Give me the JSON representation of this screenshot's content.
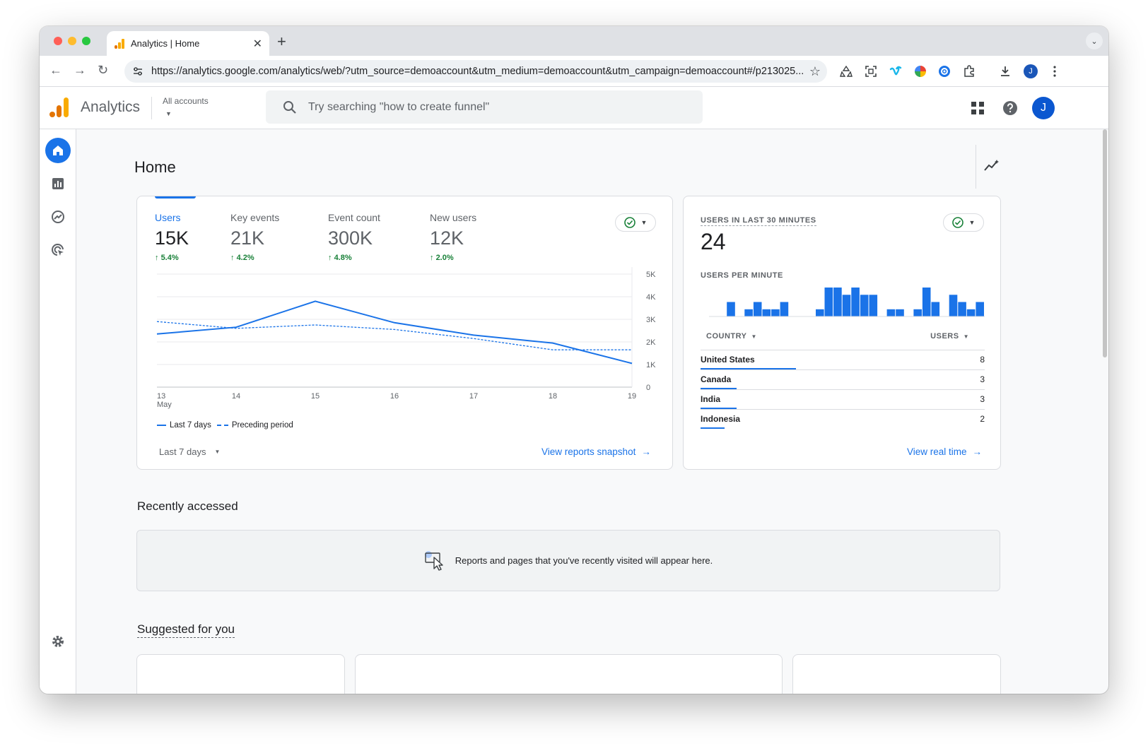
{
  "browser": {
    "tab_title": "Analytics | Home",
    "url": "https://analytics.google.com/analytics/web/?utm_source=demoaccount&utm_medium=demoaccount&utm_campaign=demoaccount#/p213025...",
    "profile_initial": "J",
    "tab_close": "✕",
    "new_tab": "+",
    "tab_menu": "⌄",
    "back": "←",
    "forward": "→",
    "reload": "↻",
    "bookmark": "☆"
  },
  "header": {
    "brand": "Analytics",
    "account_label": "All accounts",
    "search_placeholder": "Try searching \"how to create funnel\"",
    "avatar_initial": "J"
  },
  "page": {
    "title": "Home"
  },
  "overview": {
    "metrics": [
      {
        "label": "Users",
        "value": "15K",
        "delta": "5.4%"
      },
      {
        "label": "Key events",
        "value": "21K",
        "delta": "4.2%"
      },
      {
        "label": "Event count",
        "value": "300K",
        "delta": "4.8%"
      },
      {
        "label": "New users",
        "value": "12K",
        "delta": "2.0%"
      }
    ],
    "legend_current": "Last 7 days",
    "legend_previous": "Preceding period",
    "date_range": "Last 7 days",
    "view_link": "View reports snapshot",
    "month_label": "May"
  },
  "chart_data": {
    "type": "line",
    "x": [
      "13",
      "14",
      "15",
      "16",
      "17",
      "18",
      "19"
    ],
    "x_month": "May",
    "y_ticks": [
      "5K",
      "4K",
      "3K",
      "2K",
      "1K",
      "0"
    ],
    "ylim": [
      0,
      5000
    ],
    "series": [
      {
        "name": "Last 7 days",
        "values": [
          2350,
          2650,
          3800,
          2850,
          2300,
          1950,
          1050
        ]
      },
      {
        "name": "Preceding period",
        "values": [
          2900,
          2600,
          2750,
          2550,
          2150,
          1650,
          1650
        ]
      }
    ]
  },
  "realtime": {
    "title": "USERS IN LAST 30 MINUTES",
    "count": "24",
    "per_minute_label": "USERS PER MINUTE",
    "per_minute": [
      0,
      0,
      1,
      0,
      0.5,
      1,
      0.5,
      0.5,
      1,
      0,
      0,
      0,
      0.5,
      2,
      2,
      1.5,
      2,
      1.5,
      1.5,
      0,
      0.5,
      0.5,
      0,
      0.5,
      2,
      1,
      0,
      1.5,
      1,
      0.5,
      1
    ],
    "col_country": "COUNTRY",
    "col_users": "USERS",
    "countries": [
      {
        "name": "United States",
        "value": "8",
        "share": 1.0
      },
      {
        "name": "Canada",
        "value": "3",
        "share": 0.375
      },
      {
        "name": "India",
        "value": "3",
        "share": 0.375
      },
      {
        "name": "Indonesia",
        "value": "2",
        "share": 0.25
      }
    ],
    "view_link": "View real time"
  },
  "recent": {
    "title": "Recently accessed",
    "empty_message": "Reports and pages that you've recently visited will appear here."
  },
  "suggested": {
    "title": "Suggested for you"
  },
  "colors": {
    "accent": "#1a73e8",
    "positive": "#188038",
    "logo_orange": "#f9ab00",
    "logo_dark": "#e37400"
  }
}
